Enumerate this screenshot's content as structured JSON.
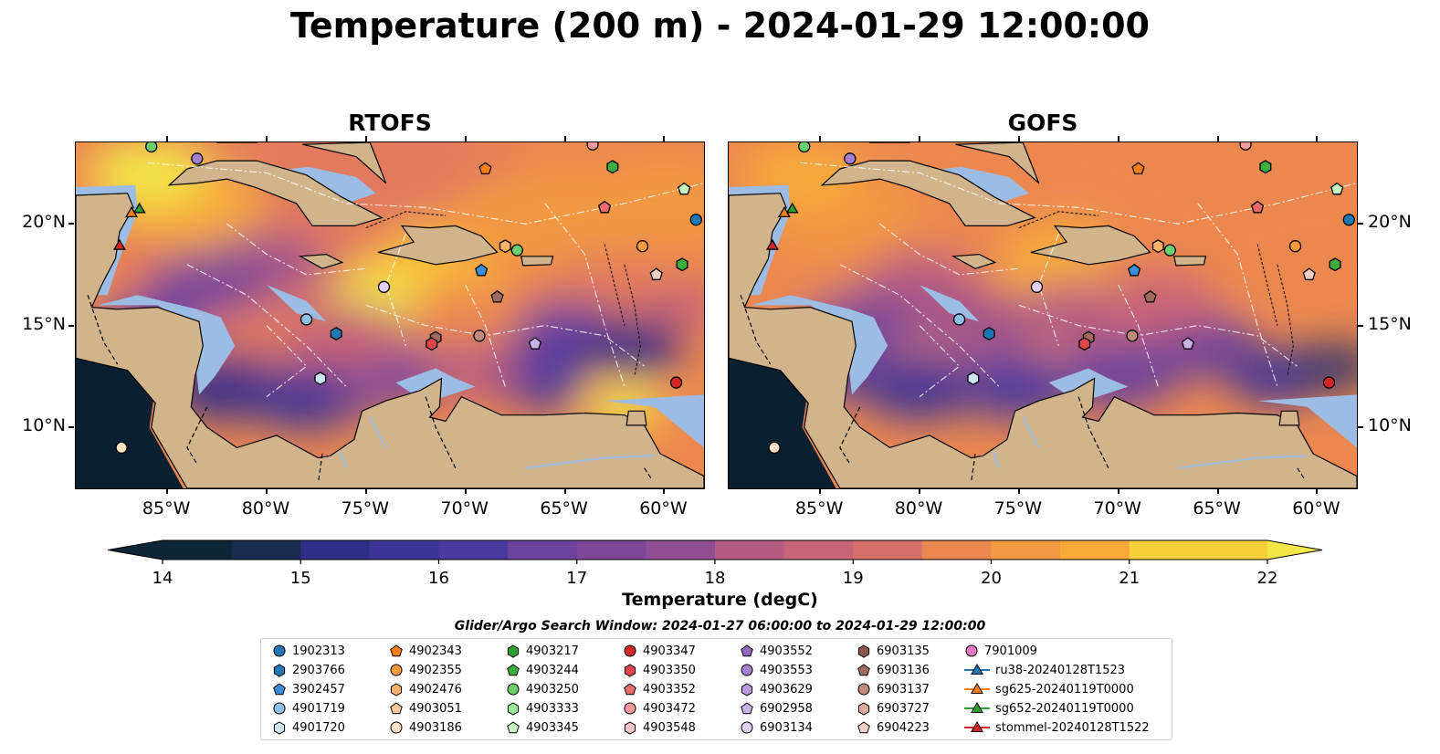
{
  "title": "Temperature (200 m) - 2024-01-29 12:00:00",
  "panels": [
    {
      "title": "RTOFS"
    },
    {
      "title": "GOFS"
    }
  ],
  "axes": {
    "lon_labels": [
      "85°W",
      "80°W",
      "75°W",
      "70°W",
      "65°W",
      "60°W"
    ],
    "lat_labels": [
      "20°N",
      "15°N",
      "10°N"
    ]
  },
  "colorbar": {
    "label": "Temperature (degC)",
    "ticks": [
      "14",
      "15",
      "16",
      "17",
      "18",
      "19",
      "20",
      "21",
      "22"
    ],
    "min": 14,
    "max": 22,
    "step": 0.5
  },
  "legend": {
    "title": "Glider/Argo Search Window: 2024-01-27 06:00:00 to 2024-01-29 12:00:00",
    "items": [
      {
        "label": "1902313",
        "marker": "circle",
        "color": "#1f77b4"
      },
      {
        "label": "2903766",
        "marker": "hexagon",
        "color": "#1f77b4"
      },
      {
        "label": "3902457",
        "marker": "pentagon",
        "color": "#3a8fd6"
      },
      {
        "label": "4901719",
        "marker": "circle",
        "color": "#8ec1e8"
      },
      {
        "label": "4901720",
        "marker": "hexagon",
        "color": "#cfe6f8"
      },
      {
        "label": "4902343",
        "marker": "pentagon",
        "color": "#ff7f0e"
      },
      {
        "label": "4902355",
        "marker": "circle",
        "color": "#ff9a3c"
      },
      {
        "label": "4902476",
        "marker": "hexagon",
        "color": "#ffb26b"
      },
      {
        "label": "4903051",
        "marker": "pentagon",
        "color": "#ffc999"
      },
      {
        "label": "4903186",
        "marker": "circle",
        "color": "#ffe0c2"
      },
      {
        "label": "4903217",
        "marker": "hexagon",
        "color": "#2ca02c"
      },
      {
        "label": "4903244",
        "marker": "pentagon",
        "color": "#3cae3c"
      },
      {
        "label": "4903250",
        "marker": "circle",
        "color": "#6ccf6c"
      },
      {
        "label": "4903333",
        "marker": "hexagon",
        "color": "#98e598"
      },
      {
        "label": "4903345",
        "marker": "pentagon",
        "color": "#c8f5c0"
      },
      {
        "label": "4903347",
        "marker": "circle",
        "color": "#d62728"
      },
      {
        "label": "4903350",
        "marker": "hexagon",
        "color": "#e0464a"
      },
      {
        "label": "4903352",
        "marker": "pentagon",
        "color": "#ea6a6c"
      },
      {
        "label": "4903472",
        "marker": "circle",
        "color": "#f49a9a"
      },
      {
        "label": "4903548",
        "marker": "hexagon",
        "color": "#fbc4c4"
      },
      {
        "label": "4903552",
        "marker": "pentagon",
        "color": "#9467bd"
      },
      {
        "label": "4903553",
        "marker": "circle",
        "color": "#a67fd0"
      },
      {
        "label": "4903629",
        "marker": "hexagon",
        "color": "#b898de"
      },
      {
        "label": "6902958",
        "marker": "pentagon",
        "color": "#cbb2ea"
      },
      {
        "label": "6903134",
        "marker": "circle",
        "color": "#e3d0f6"
      },
      {
        "label": "6903135",
        "marker": "hexagon",
        "color": "#8c564b"
      },
      {
        "label": "6903136",
        "marker": "pentagon",
        "color": "#a06a5e"
      },
      {
        "label": "6903137",
        "marker": "circle",
        "color": "#c08a7d"
      },
      {
        "label": "6903727",
        "marker": "hexagon",
        "color": "#dba89c"
      },
      {
        "label": "6904223",
        "marker": "pentagon",
        "color": "#f5cfc4"
      },
      {
        "label": "7901009",
        "marker": "circle",
        "color": "#e377c2"
      },
      {
        "label": "ru38-20240128T1523",
        "marker": "triangle-line",
        "color": "#1f77b4"
      },
      {
        "label": "sg625-20240119T0000",
        "marker": "triangle-line",
        "color": "#ff7f0e"
      },
      {
        "label": "sg652-20240119T0000",
        "marker": "triangle-line",
        "color": "#2ca02c"
      },
      {
        "label": "stommel-20240128T1522",
        "marker": "triangle-line",
        "color": "#d62728"
      }
    ]
  },
  "colors": {
    "land": "#d2b48c",
    "shelf": "#9cbce4",
    "pacific": "#0a2030",
    "cmap": [
      "#0d2637",
      "#1a2c4e",
      "#25316e",
      "#302f88",
      "#3c3596",
      "#4a3a9e",
      "#5a3e9f",
      "#6b439c",
      "#7d4898",
      "#8f4e92",
      "#a2558b",
      "#b45c82",
      "#c66478",
      "#d66e6b",
      "#e27a5d",
      "#ec884f",
      "#f39843",
      "#f7aa3a",
      "#f9bd37",
      "#f7d13c",
      "#f2e648"
    ]
  },
  "markers": [
    {
      "lon": -85.8,
      "lat": 23.8,
      "marker": "circle",
      "color": "#6ccf6c"
    },
    {
      "lon": -83.5,
      "lat": 23.2,
      "marker": "circle",
      "color": "#a67fd0"
    },
    {
      "lon": -69.0,
      "lat": 22.7,
      "marker": "pentagon",
      "color": "#ff7f0e"
    },
    {
      "lon": -63.6,
      "lat": 23.9,
      "marker": "circle",
      "color": "#f49a9a"
    },
    {
      "lon": -62.6,
      "lat": 22.8,
      "marker": "hexagon",
      "color": "#3cae3c"
    },
    {
      "lon": -63.0,
      "lat": 20.8,
      "marker": "pentagon",
      "color": "#ea6a6c"
    },
    {
      "lon": -59.0,
      "lat": 21.7,
      "marker": "pentagon",
      "color": "#c8f5c0"
    },
    {
      "lon": -58.4,
      "lat": 20.2,
      "marker": "circle",
      "color": "#1f77b4"
    },
    {
      "lon": -61.1,
      "lat": 18.9,
      "marker": "circle",
      "color": "#ff9a3c"
    },
    {
      "lon": -60.4,
      "lat": 17.5,
      "marker": "pentagon",
      "color": "#f5cfc4"
    },
    {
      "lon": -59.1,
      "lat": 18.0,
      "marker": "hexagon",
      "color": "#3cae3c"
    },
    {
      "lon": -68.0,
      "lat": 18.9,
      "marker": "hexagon",
      "color": "#ffb26b"
    },
    {
      "lon": -67.4,
      "lat": 18.7,
      "marker": "circle",
      "color": "#6ccf6c"
    },
    {
      "lon": -69.2,
      "lat": 17.7,
      "marker": "pentagon",
      "color": "#3a8fd6"
    },
    {
      "lon": -74.1,
      "lat": 16.9,
      "marker": "circle",
      "color": "#e3d0f6"
    },
    {
      "lon": -68.4,
      "lat": 16.4,
      "marker": "pentagon",
      "color": "#a06a5e"
    },
    {
      "lon": -78.0,
      "lat": 15.3,
      "marker": "circle",
      "color": "#8ec1e8"
    },
    {
      "lon": -76.5,
      "lat": 14.6,
      "marker": "hexagon",
      "color": "#1f77b4"
    },
    {
      "lon": -71.5,
      "lat": 14.4,
      "marker": "hexagon",
      "color": "#a06a5e"
    },
    {
      "lon": -71.7,
      "lat": 14.1,
      "marker": "hexagon",
      "color": "#e0464a"
    },
    {
      "lon": -69.3,
      "lat": 14.5,
      "marker": "circle",
      "color": "#c08a7d"
    },
    {
      "lon": -66.5,
      "lat": 14.1,
      "marker": "pentagon",
      "color": "#cbb2ea"
    },
    {
      "lon": -77.3,
      "lat": 12.4,
      "marker": "hexagon",
      "color": "#cfe6f8"
    },
    {
      "lon": -59.4,
      "lat": 12.2,
      "marker": "circle",
      "color": "#d62728"
    },
    {
      "lon": -87.3,
      "lat": 9.0,
      "marker": "circle",
      "color": "#ffe0c2"
    },
    {
      "lon": -86.4,
      "lat": 20.7,
      "marker": "triangle",
      "color": "#2ca02c"
    },
    {
      "lon": -86.8,
      "lat": 20.5,
      "marker": "triangle",
      "color": "#ff7f0e"
    },
    {
      "lon": -87.4,
      "lat": 18.9,
      "marker": "triangle",
      "color": "#d62728"
    }
  ]
}
